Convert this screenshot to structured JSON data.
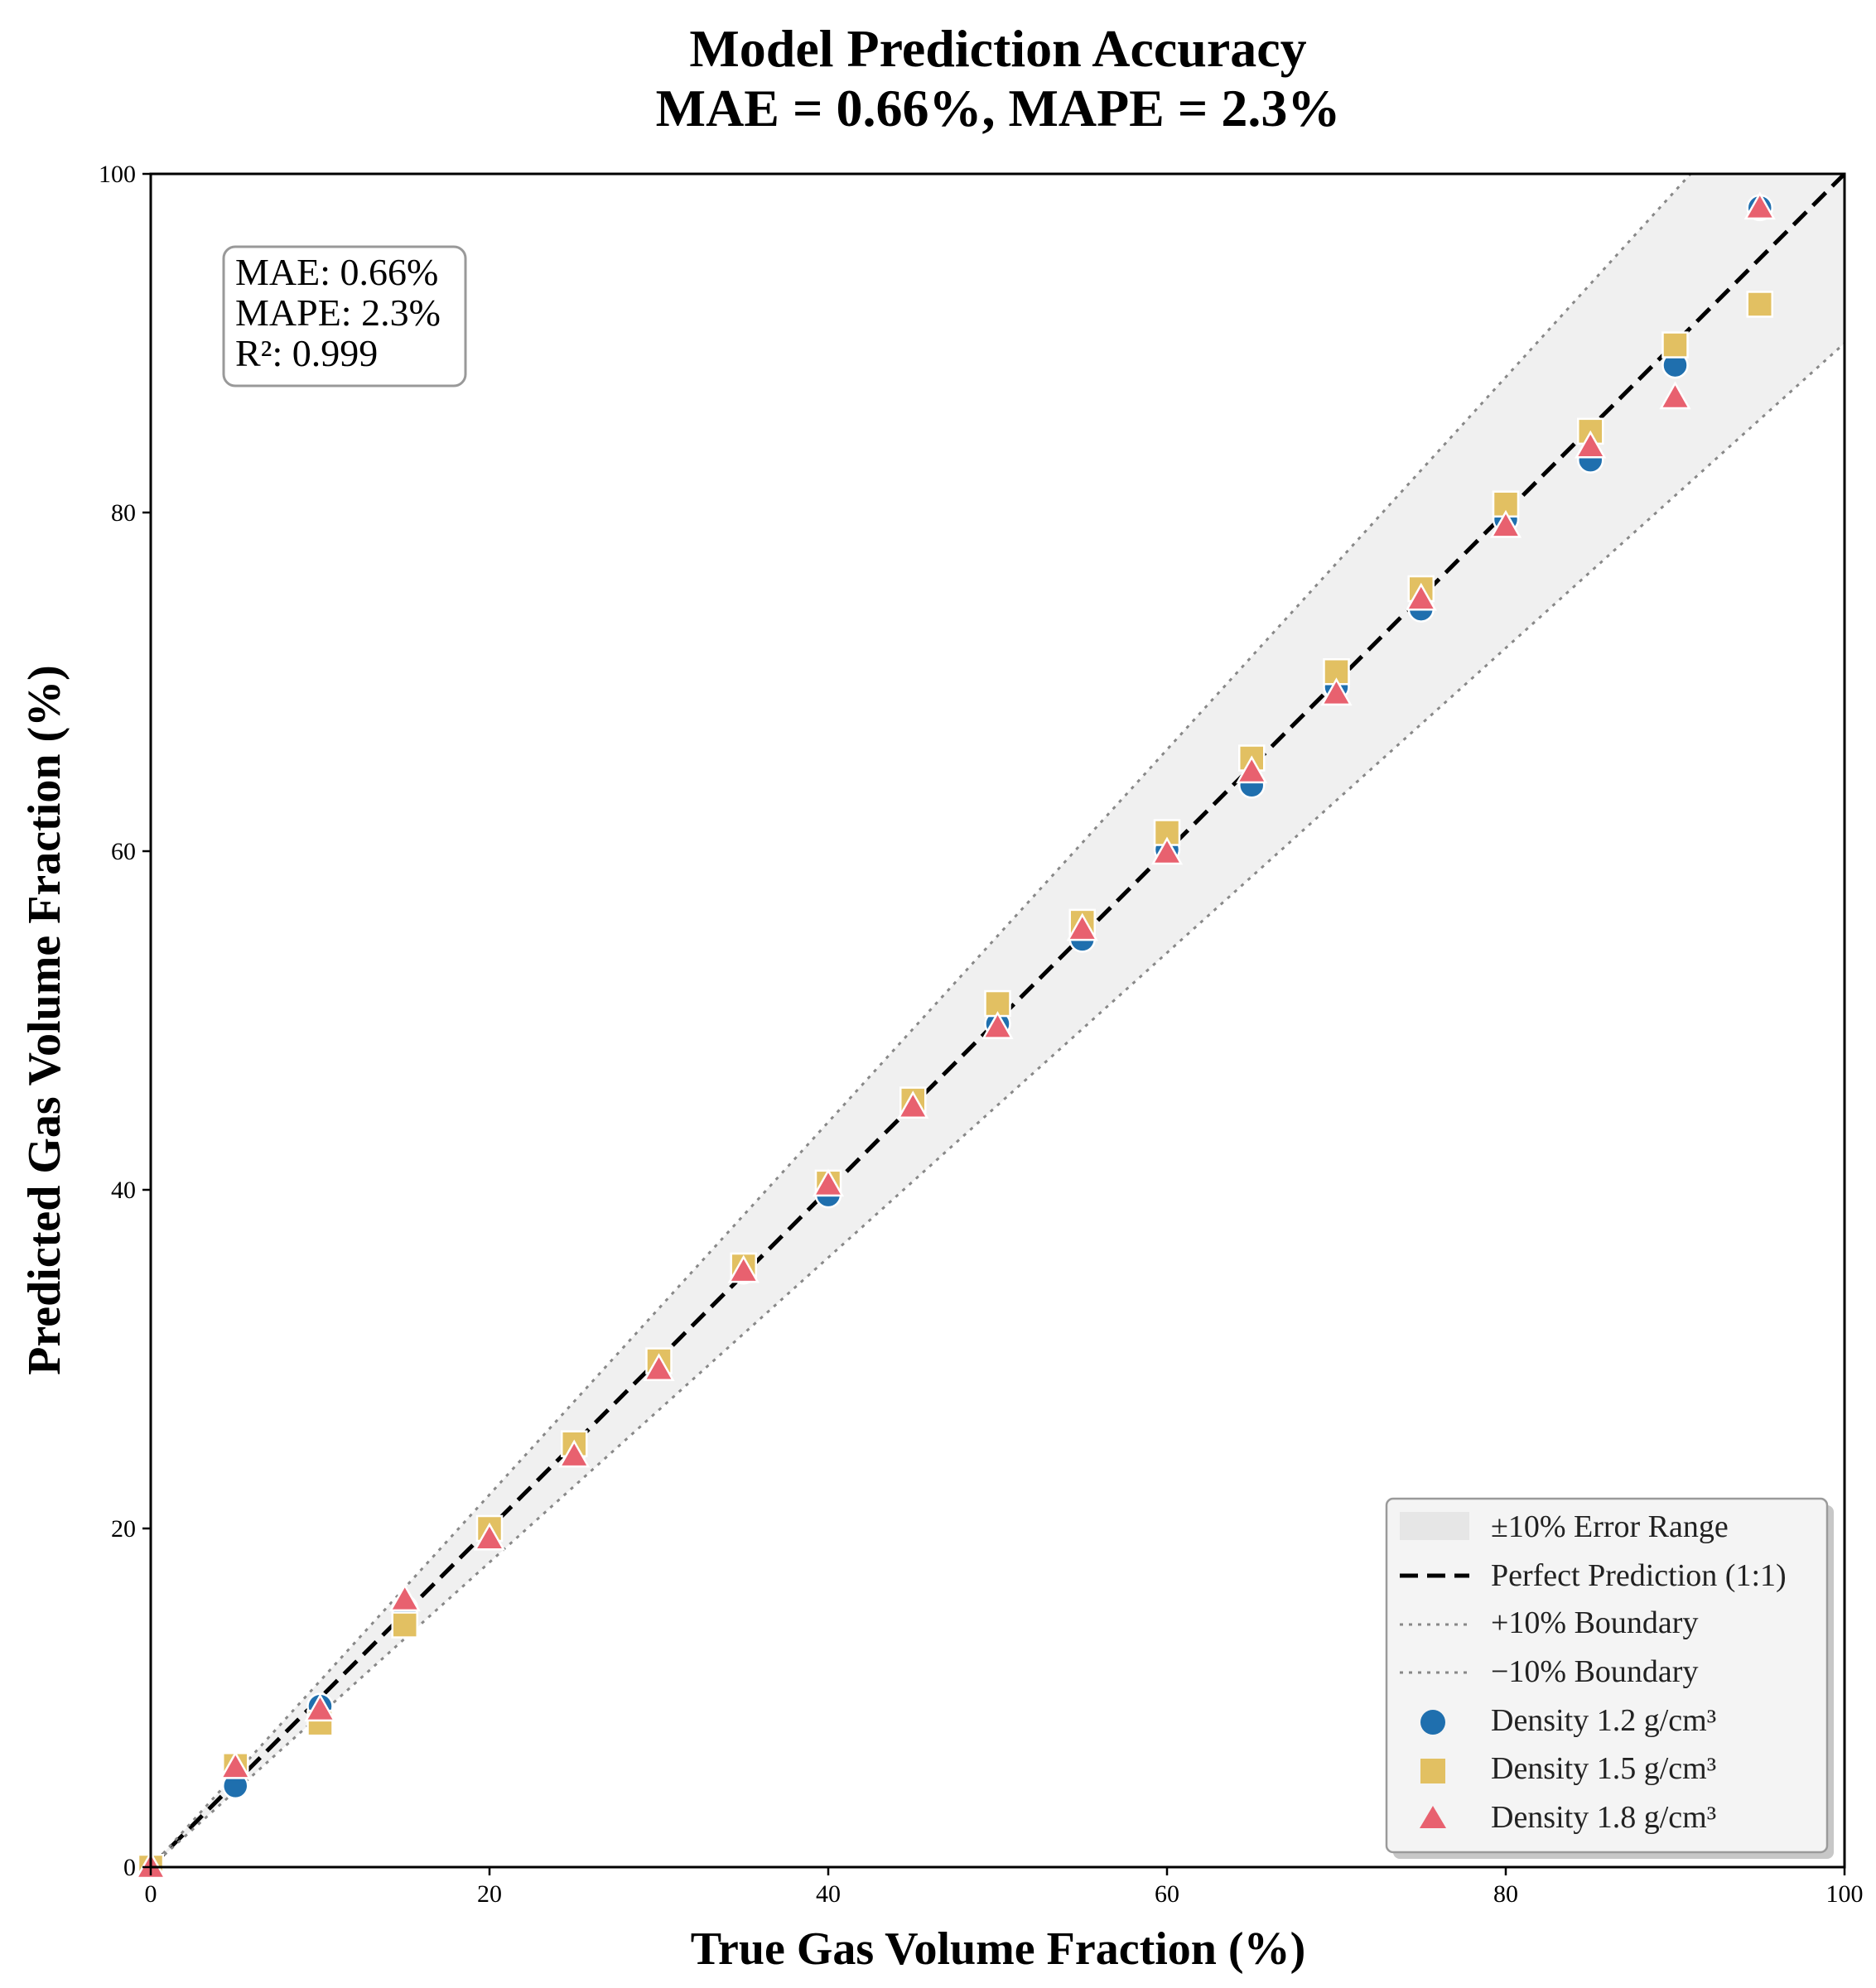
{
  "chart_data": {
    "type": "scatter",
    "title": "Model Prediction Accuracy",
    "subtitle": "MAE = 0.66%, MAPE = 2.3%",
    "xlabel": "True Gas Volume Fraction (%)",
    "ylabel": "Predicted Gas Volume Fraction (%)",
    "xlim": [
      0,
      100
    ],
    "ylim": [
      0,
      100
    ],
    "xticks": [
      "0",
      "20",
      "40",
      "60",
      "80",
      "100"
    ],
    "yticks": [
      "0",
      "20",
      "40",
      "60",
      "80",
      "100"
    ],
    "tick_values": [
      0,
      20,
      40,
      60,
      80,
      100
    ],
    "grid": false,
    "stats_box": {
      "position": "top-left",
      "lines": [
        "MAE: 0.66%",
        "MAPE: 2.3%",
        "R²: 0.999"
      ]
    },
    "error_band": {
      "label": "±10% Error Range",
      "percent": 10,
      "color": "#f0f0f0"
    },
    "reference_lines": [
      {
        "label": "Perfect Prediction (1:1)",
        "slope": 1.0,
        "style": "dashed",
        "color": "#000000"
      },
      {
        "label": "+10% Boundary",
        "slope": 1.1,
        "style": "dotted",
        "color": "#888888"
      },
      {
        "label": "−10% Boundary",
        "slope": 0.9,
        "style": "dotted",
        "color": "#888888"
      }
    ],
    "legend_position": "lower-right",
    "series": [
      {
        "name": "Density 1.2 g/cm³",
        "marker": "circle",
        "color": "#1f6fae",
        "x": [
          0,
          5,
          10,
          15,
          20,
          25,
          30,
          35,
          40,
          45,
          50,
          55,
          60,
          65,
          70,
          75,
          80,
          85,
          90,
          95
        ],
        "y": [
          0,
          4.8,
          9.5,
          15.3,
          19.7,
          24.6,
          29.8,
          35.2,
          39.7,
          45.2,
          49.8,
          54.8,
          60.1,
          63.9,
          69.7,
          74.3,
          79.6,
          83.1,
          88.7,
          98.0
        ]
      },
      {
        "name": "Density 1.5 g/cm³",
        "marker": "square",
        "color": "#e2c062",
        "x": [
          0,
          5,
          10,
          15,
          20,
          25,
          30,
          35,
          40,
          45,
          50,
          55,
          60,
          65,
          70,
          75,
          80,
          85,
          90,
          95
        ],
        "y": [
          0,
          6.0,
          8.5,
          14.3,
          20.0,
          25.0,
          29.9,
          35.5,
          40.4,
          45.3,
          51.0,
          55.8,
          61.1,
          65.5,
          70.6,
          75.5,
          80.5,
          84.8,
          89.9,
          92.3
        ]
      },
      {
        "name": "Density 1.8 g/cm³",
        "marker": "triangle",
        "color": "#e8616f",
        "x": [
          0,
          5,
          10,
          15,
          20,
          25,
          30,
          35,
          40,
          45,
          50,
          55,
          60,
          65,
          70,
          75,
          80,
          85,
          90,
          95
        ],
        "y": [
          0,
          5.9,
          9.3,
          15.8,
          19.4,
          24.3,
          29.4,
          35.2,
          40.3,
          44.9,
          49.6,
          55.4,
          59.9,
          64.7,
          69.3,
          74.9,
          79.2,
          83.9,
          86.8,
          98.0
        ]
      }
    ]
  }
}
